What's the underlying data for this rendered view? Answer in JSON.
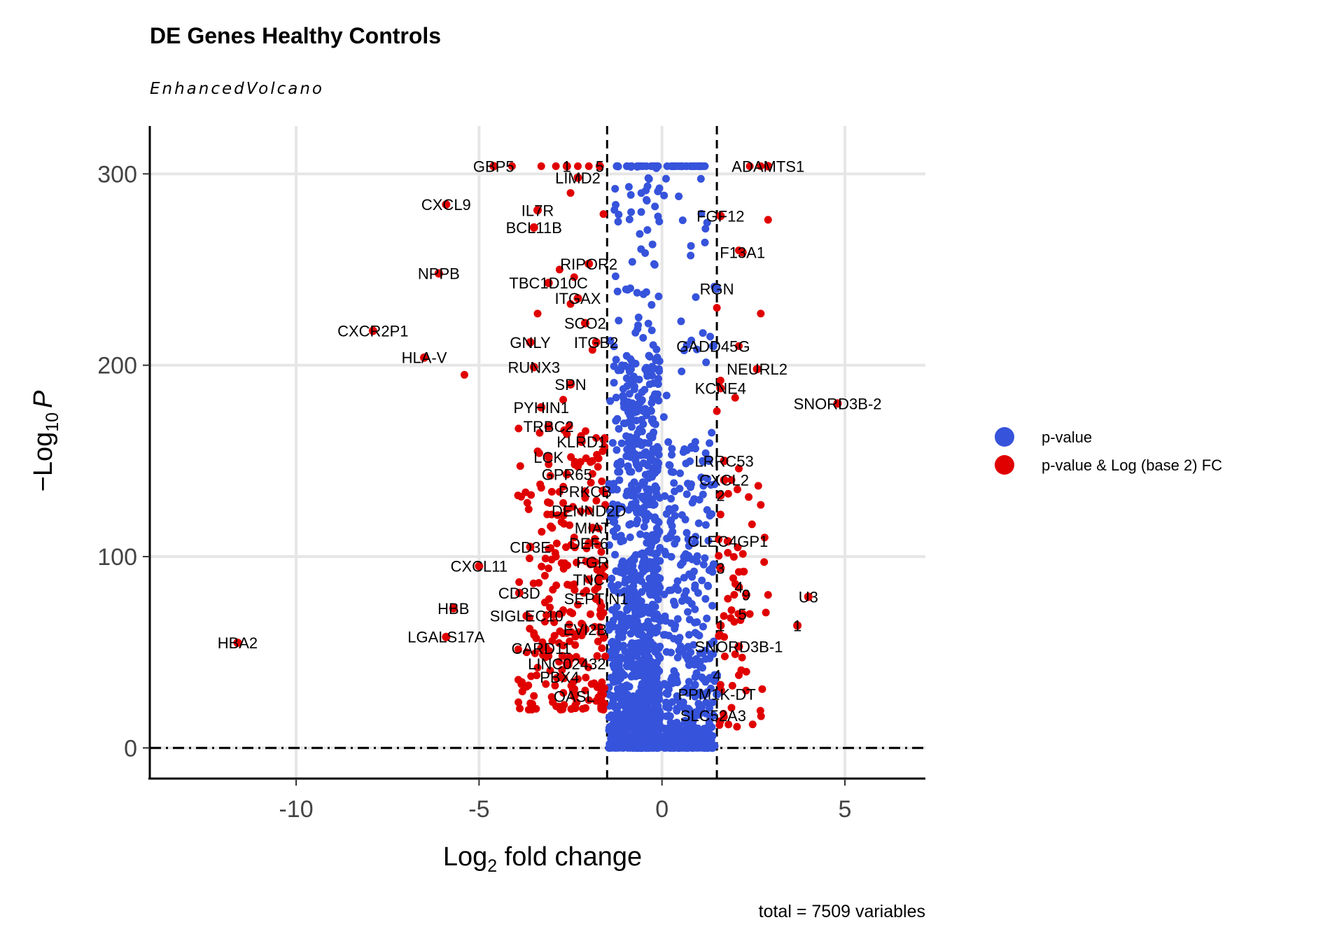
{
  "chart_data": {
    "type": "scatter",
    "title": "DE Genes Healthy Controls",
    "subtitle": "EnhancedVolcano",
    "xlabel": {
      "main": "Log",
      "sub": "2",
      "rest": " fold change"
    },
    "ylabel": {
      "prefix": "−Log",
      "sub": "10",
      "italic": "P"
    },
    "caption": "total = 7509 variables",
    "xlim": [
      -14,
      7.2
    ],
    "ylim": [
      -16,
      325
    ],
    "x_ticks": [
      -10,
      -5,
      0,
      5
    ],
    "x_tick_labels": [
      "-10",
      "-5",
      "0",
      "5"
    ],
    "y_ticks": [
      0,
      100,
      200,
      300
    ],
    "y_tick_labels": [
      "0",
      "100",
      "200",
      "300"
    ],
    "fc_cutoff": 1.5,
    "p_cutoff_line": 0,
    "grid": true,
    "legend_position": "right",
    "colors": {
      "pvalue": "#3653db",
      "pvalue_fc": "#e00000",
      "grid": "#e6e6e6"
    },
    "series": [
      {
        "name": "p-value",
        "color": "#3653db",
        "note_shape": "dense band of points between Log2 FC -1.5 and 1.5"
      },
      {
        "name": "p-value & Log (base 2) FC",
        "color": "#e00000"
      }
    ],
    "labeled_points": [
      {
        "label": "GBP5",
        "x": -4.6,
        "y": 304
      },
      {
        "label": "1",
        "x": -2.6,
        "y": 304
      },
      {
        "label": "5",
        "x": -1.7,
        "y": 304
      },
      {
        "label": "ADAMTS1",
        "x": 2.9,
        "y": 304
      },
      {
        "label": "LIMD2",
        "x": -2.3,
        "y": 298
      },
      {
        "label": "CXCL9",
        "x": -5.9,
        "y": 284
      },
      {
        "label": "IL7R",
        "x": -3.4,
        "y": 281
      },
      {
        "label": "FGF12",
        "x": 1.6,
        "y": 278
      },
      {
        "label": "BCL11B",
        "x": -3.5,
        "y": 272
      },
      {
        "label": "F13A1",
        "x": 2.2,
        "y": 259
      },
      {
        "label": "RIPOR2",
        "x": -2.0,
        "y": 253
      },
      {
        "label": "NPPB",
        "x": -6.1,
        "y": 248
      },
      {
        "label": "TBC1D10C",
        "x": -3.1,
        "y": 243
      },
      {
        "label": "RGN",
        "x": 1.5,
        "y": 240
      },
      {
        "label": "ITGAX",
        "x": -2.3,
        "y": 235
      },
      {
        "label": "SCO2",
        "x": -2.1,
        "y": 222
      },
      {
        "label": "CXCR2P1",
        "x": -7.9,
        "y": 218
      },
      {
        "label": "GNLY",
        "x": -3.6,
        "y": 212
      },
      {
        "label": "ITGB2",
        "x": -1.8,
        "y": 212
      },
      {
        "label": "GADD45G",
        "x": 1.4,
        "y": 210
      },
      {
        "label": "HLA-V",
        "x": -6.5,
        "y": 204
      },
      {
        "label": "RUNX3",
        "x": -3.5,
        "y": 199
      },
      {
        "label": "NEURL2",
        "x": 2.6,
        "y": 198
      },
      {
        "label": "SPN",
        "x": -2.5,
        "y": 190
      },
      {
        "label": "KCNE4",
        "x": 1.6,
        "y": 188
      },
      {
        "label": "SNORD3B-2",
        "x": 4.8,
        "y": 180
      },
      {
        "label": "PYHIN1",
        "x": -3.3,
        "y": 178
      },
      {
        "label": "TRBC2",
        "x": -3.1,
        "y": 168
      },
      {
        "label": "KLRD1",
        "x": -2.2,
        "y": 160
      },
      {
        "label": "LRRC53",
        "x": 1.7,
        "y": 150
      },
      {
        "label": "LCK",
        "x": -3.1,
        "y": 152
      },
      {
        "label": "CXCL2",
        "x": 1.7,
        "y": 140
      },
      {
        "label": "GPR65",
        "x": -2.6,
        "y": 143
      },
      {
        "label": "2",
        "x": 1.6,
        "y": 132
      },
      {
        "label": "PRKCB",
        "x": -2.1,
        "y": 134
      },
      {
        "label": "DENND2D",
        "x": -2.0,
        "y": 124
      },
      {
        "label": "MIAT",
        "x": -1.9,
        "y": 115
      },
      {
        "label": "CLEC4GP1",
        "x": 1.8,
        "y": 108
      },
      {
        "label": "DEF6",
        "x": -2.0,
        "y": 107
      },
      {
        "label": "CD3E",
        "x": -3.6,
        "y": 105
      },
      {
        "label": "FGR",
        "x": -1.9,
        "y": 97
      },
      {
        "label": "3",
        "x": 1.6,
        "y": 94
      },
      {
        "label": "CXCL11",
        "x": -5.0,
        "y": 95
      },
      {
        "label": "TNC",
        "x": -2.0,
        "y": 88
      },
      {
        "label": "4",
        "x": 2.1,
        "y": 84
      },
      {
        "label": "SEPTIN1",
        "x": -1.8,
        "y": 78
      },
      {
        "label": "CD3D",
        "x": -3.9,
        "y": 81
      },
      {
        "label": "9",
        "x": 2.3,
        "y": 80
      },
      {
        "label": "U3",
        "x": 4.0,
        "y": 79
      },
      {
        "label": "HBB",
        "x": -5.7,
        "y": 73
      },
      {
        "label": "SIGLEC10",
        "x": -3.7,
        "y": 69
      },
      {
        "label": "5",
        "x": 2.2,
        "y": 70
      },
      {
        "label": "EVI2B",
        "x": -2.1,
        "y": 62
      },
      {
        "label": "1",
        "x": 3.7,
        "y": 64
      },
      {
        "label": "1",
        "x": 1.6,
        "y": 64
      },
      {
        "label": "LGALS17A",
        "x": -5.9,
        "y": 58
      },
      {
        "label": "HBA2",
        "x": -11.6,
        "y": 55
      },
      {
        "label": "SNORD3B-1",
        "x": 2.1,
        "y": 53
      },
      {
        "label": "CARD11",
        "x": -3.3,
        "y": 52
      },
      {
        "label": "LINC02432",
        "x": -2.6,
        "y": 44
      },
      {
        "label": "4",
        "x": 1.5,
        "y": 38
      },
      {
        "label": "PBX4",
        "x": -2.8,
        "y": 37
      },
      {
        "label": "PPM1K-DT",
        "x": 1.5,
        "y": 28
      },
      {
        "label": "OASL",
        "x": -2.4,
        "y": 27
      },
      {
        "label": "SLC52A3",
        "x": 1.4,
        "y": 17
      }
    ],
    "extra_red_points": [
      [
        -4.1,
        304
      ],
      [
        -3.3,
        304
      ],
      [
        -2.9,
        304
      ],
      [
        -2.3,
        304
      ],
      [
        -2.0,
        304
      ],
      [
        2.4,
        304
      ],
      [
        2.7,
        304
      ],
      [
        -2.5,
        290
      ],
      [
        2.9,
        276
      ],
      [
        2.1,
        260
      ],
      [
        -1.6,
        279
      ],
      [
        -2.4,
        246
      ],
      [
        -2.8,
        250
      ],
      [
        2.7,
        227
      ],
      [
        -3.4,
        227
      ],
      [
        -2.5,
        232
      ],
      [
        1.5,
        230
      ],
      [
        -1.9,
        208
      ],
      [
        2.1,
        210
      ],
      [
        -5.4,
        195
      ],
      [
        1.6,
        192
      ],
      [
        2.0,
        183
      ],
      [
        -2.7,
        182
      ],
      [
        1.5,
        176
      ],
      [
        -3.4,
        155
      ],
      [
        -2.6,
        164
      ],
      [
        -1.8,
        162
      ],
      [
        -2.3,
        147
      ],
      [
        -1.9,
        150
      ],
      [
        2.1,
        146
      ],
      [
        1.9,
        140
      ],
      [
        -3.3,
        136
      ],
      [
        -2.7,
        128
      ],
      [
        2.7,
        127
      ],
      [
        1.6,
        122
      ],
      [
        -3.0,
        115
      ],
      [
        -2.4,
        110
      ],
      [
        1.8,
        102
      ],
      [
        -2.9,
        100
      ],
      [
        -1.9,
        98
      ],
      [
        2.1,
        92
      ],
      [
        -3.2,
        90
      ],
      [
        -2.5,
        85
      ],
      [
        1.8,
        78
      ],
      [
        2.9,
        80
      ],
      [
        -3.2,
        76
      ],
      [
        -2.7,
        72
      ],
      [
        1.9,
        72
      ],
      [
        2.4,
        70
      ],
      [
        -3.2,
        66
      ],
      [
        -2.6,
        60
      ],
      [
        1.7,
        58
      ],
      [
        2.0,
        49
      ],
      [
        -3.7,
        50
      ],
      [
        -3.1,
        48
      ],
      [
        -3.4,
        42
      ],
      [
        2.1,
        38
      ],
      [
        -2.3,
        36
      ],
      [
        1.6,
        33
      ],
      [
        2.3,
        30
      ],
      [
        -2.1,
        30
      ],
      [
        -2.0,
        25
      ],
      [
        1.9,
        21
      ],
      [
        1.6,
        14
      ],
      [
        -1.6,
        20
      ],
      [
        -3.0,
        56
      ],
      [
        -2.8,
        70
      ],
      [
        -3.5,
        60
      ],
      [
        -2.2,
        65
      ]
    ]
  },
  "legend": {
    "items": [
      {
        "label": "p-value",
        "color": "#3653db"
      },
      {
        "label": "p-value & Log (base 2) FC",
        "color": "#e00000"
      }
    ]
  }
}
